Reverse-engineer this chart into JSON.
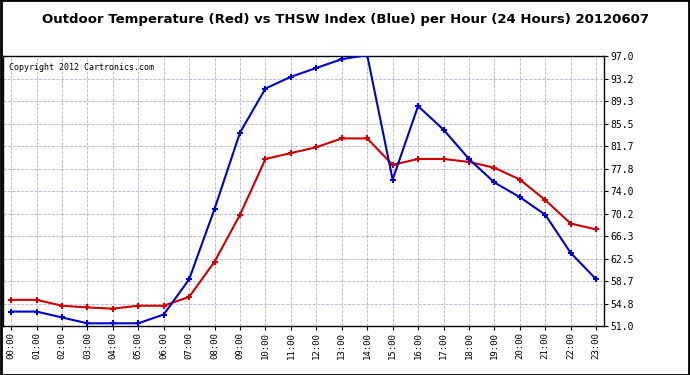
{
  "title": "Outdoor Temperature (Red) vs THSW Index (Blue) per Hour (24 Hours) 20120607",
  "copyright": "Copyright 2012 Cartronics.com",
  "hours": [
    "00:00",
    "01:00",
    "02:00",
    "03:00",
    "04:00",
    "05:00",
    "06:00",
    "07:00",
    "08:00",
    "09:00",
    "10:00",
    "11:00",
    "12:00",
    "13:00",
    "14:00",
    "15:00",
    "16:00",
    "17:00",
    "18:00",
    "19:00",
    "20:00",
    "21:00",
    "22:00",
    "23:00"
  ],
  "red_temp": [
    55.5,
    55.5,
    54.5,
    54.2,
    54.0,
    54.5,
    54.5,
    56.0,
    62.0,
    70.0,
    79.5,
    80.5,
    81.5,
    83.0,
    83.0,
    78.5,
    79.5,
    79.5,
    79.0,
    78.0,
    76.0,
    72.5,
    68.5,
    67.5
  ],
  "blue_thsw": [
    53.5,
    53.5,
    52.5,
    51.5,
    51.5,
    51.5,
    53.0,
    59.0,
    71.0,
    84.0,
    91.5,
    93.5,
    95.0,
    96.5,
    97.2,
    76.0,
    88.5,
    84.5,
    79.5,
    75.5,
    73.0,
    70.0,
    63.5,
    59.0
  ],
  "ylim": [
    51.0,
    97.0
  ],
  "yticks": [
    51.0,
    54.8,
    58.7,
    62.5,
    66.3,
    70.2,
    74.0,
    77.8,
    81.7,
    85.5,
    89.3,
    93.2,
    97.0
  ],
  "bg_color": "#ffffff",
  "grid_color": "#aaaacc",
  "red_color": "#cc0000",
  "blue_color": "#0000cc",
  "title_color": "#000000",
  "copyright_color": "#000000"
}
